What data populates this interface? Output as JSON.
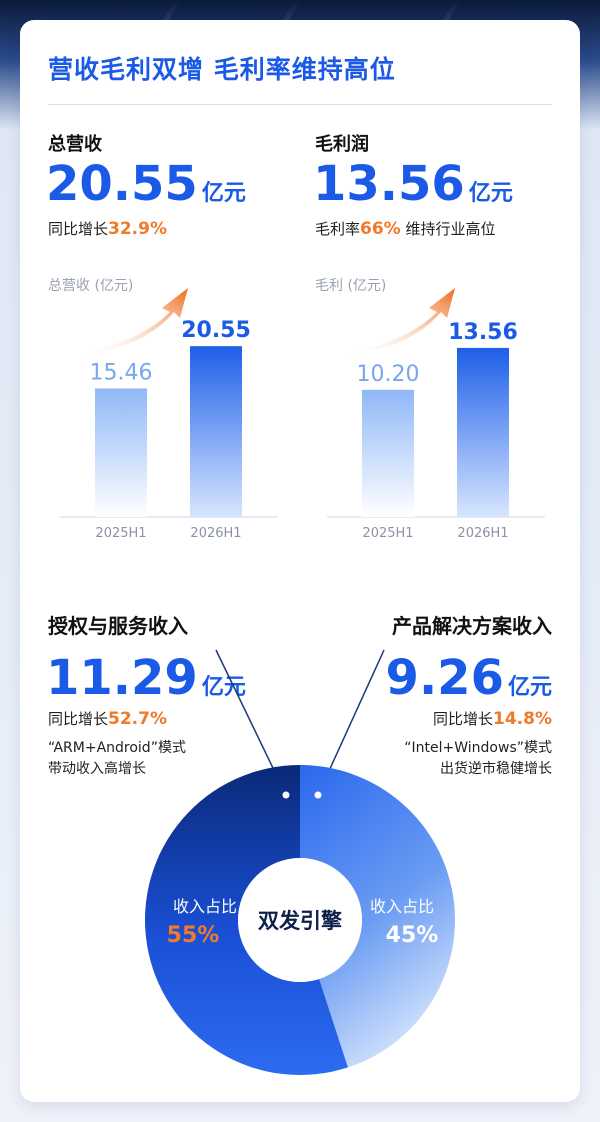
{
  "header": {
    "title": "营收毛利双增  毛利率维持高位"
  },
  "revenue": {
    "label": "总营收",
    "value": "20.55",
    "unit": "亿元",
    "growth_prefix": "同比增长",
    "growth": "32.9%"
  },
  "gross_profit": {
    "label": "毛利润",
    "value": "13.56",
    "unit": "亿元",
    "margin_prefix": "毛利率",
    "margin": "66%",
    "margin_suffix": " 维持行业高位"
  },
  "licensing": {
    "label": "授权与服务收入",
    "value": "11.29",
    "unit": "亿元",
    "growth_prefix": "同比增长",
    "growth": "52.7%",
    "note_line1": "“ARM+Android”模式",
    "note_line2": "带动收入高增长"
  },
  "solutions": {
    "label": "产品解决方案收入",
    "value": "9.26",
    "unit": "亿元",
    "growth_prefix": "同比增长",
    "growth": "14.8%",
    "note_line1": "“Intel+Windows”模式",
    "note_line2": "出货逆市稳健增长"
  },
  "colors": {
    "accent": "#1a5ae6",
    "highlight": "#f07a2a",
    "bar_prev": "#8fb8f7",
    "bar_curr": "#2667ea"
  },
  "chart_data": [
    {
      "type": "bar",
      "title": "总营收 (亿元)",
      "categories": [
        "2025H1",
        "2026H1"
      ],
      "values": [
        15.46,
        20.55
      ],
      "value_labels": [
        "15.46",
        "20.55"
      ],
      "ylim": [
        0,
        24
      ]
    },
    {
      "type": "bar",
      "title": "毛利 (亿元)",
      "categories": [
        "2025H1",
        "2026H1"
      ],
      "values": [
        10.2,
        13.56
      ],
      "value_labels": [
        "10.20",
        "13.56"
      ],
      "ylim": [
        0,
        16
      ]
    },
    {
      "type": "pie",
      "center_label": "双发引擎",
      "categories": [
        "授权与服务收入",
        "产品解决方案收入"
      ],
      "values": [
        55,
        45
      ],
      "slice_captions": [
        "收入占比",
        "收入占比"
      ],
      "slice_labels": [
        "55%",
        "45%"
      ]
    }
  ]
}
